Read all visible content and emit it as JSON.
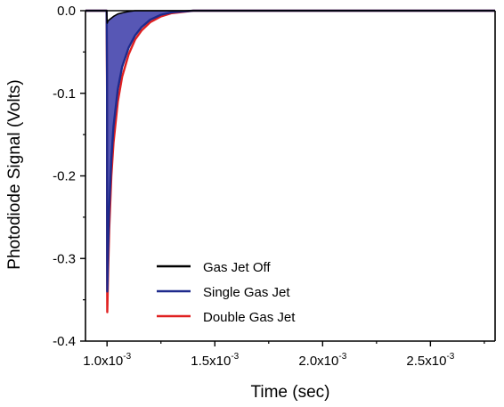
{
  "chart_data": {
    "type": "line",
    "title": "",
    "xlabel": "Time (sec)",
    "ylabel": "Photodiode Signal (Volts)",
    "xlim": [
      0.0009,
      0.0028
    ],
    "ylim": [
      -0.4,
      0.0
    ],
    "x_ticks": [
      0.001,
      0.0015,
      0.002,
      0.0025
    ],
    "x_tick_labels": [
      {
        "mantissa": "1.0x10",
        "exponent": "-3"
      },
      {
        "mantissa": "1.5x10",
        "exponent": "-3"
      },
      {
        "mantissa": "2.0x10",
        "exponent": "-3"
      },
      {
        "mantissa": "2.5x10",
        "exponent": "-3"
      }
    ],
    "y_ticks": [
      0.0,
      -0.1,
      -0.2,
      -0.3,
      -0.4
    ],
    "y_tick_labels": [
      "0.0",
      "-0.1",
      "-0.2",
      "-0.3",
      "-0.4"
    ],
    "grid": false,
    "legend_position": "lower-center",
    "fill_between": {
      "upper": "Gas Jet Off",
      "lower": "Single Gas Jet",
      "color": "#3a3aa8"
    },
    "series": [
      {
        "name": "Gas Jet Off",
        "color": "#000000",
        "x": [
          0.0009,
          0.000998,
          0.001,
          0.001001,
          0.001003,
          0.00101,
          0.00103,
          0.00105,
          0.00108,
          0.0011,
          0.00113,
          0.0012,
          0.0014,
          0.002,
          0.0028
        ],
        "y": [
          0.0,
          0.0,
          -0.01,
          -0.015,
          -0.013,
          -0.011,
          -0.007,
          -0.004,
          -0.002,
          -0.001,
          0.0,
          0.0,
          0.0,
          0.0,
          0.0
        ]
      },
      {
        "name": "Single Gas Jet",
        "color": "#1e2a8c",
        "x": [
          0.0009,
          0.000998,
          0.001,
          0.0010005,
          0.001001,
          0.001002,
          0.001005,
          0.00101,
          0.00102,
          0.00103,
          0.00105,
          0.00107,
          0.0011,
          0.00113,
          0.00116,
          0.0012,
          0.00125,
          0.0013,
          0.0014,
          0.002,
          0.0028
        ],
        "y": [
          0.0,
          0.0,
          -0.08,
          -0.3,
          -0.34,
          -0.33,
          -0.29,
          -0.24,
          -0.18,
          -0.14,
          -0.095,
          -0.068,
          -0.045,
          -0.03,
          -0.02,
          -0.011,
          -0.005,
          -0.002,
          0.0,
          0.0,
          0.0
        ]
      },
      {
        "name": "Double Gas Jet",
        "color": "#e02020",
        "x": [
          0.0009,
          0.000998,
          0.001,
          0.0010005,
          0.001001,
          0.001002,
          0.001005,
          0.00101,
          0.00102,
          0.00103,
          0.00105,
          0.00107,
          0.0011,
          0.00113,
          0.00116,
          0.0012,
          0.00125,
          0.0013,
          0.0014,
          0.002,
          0.0028
        ],
        "y": [
          0.0,
          0.0,
          -0.1,
          -0.33,
          -0.365,
          -0.355,
          -0.315,
          -0.265,
          -0.2,
          -0.16,
          -0.11,
          -0.08,
          -0.053,
          -0.035,
          -0.024,
          -0.014,
          -0.007,
          -0.003,
          0.0,
          0.0,
          0.0
        ]
      }
    ]
  }
}
